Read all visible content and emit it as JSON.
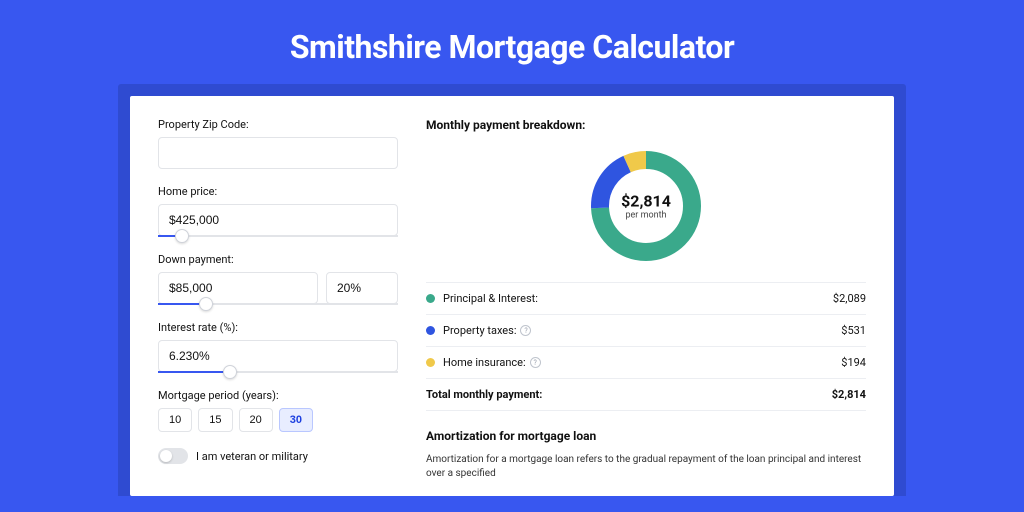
{
  "page": {
    "title": "Smithshire Mortgage Calculator",
    "colors": {
      "page_bg": "#3857f0",
      "card_wrap_bg": "#2f4bd1",
      "card_bg": "#ffffff",
      "accent": "#3857f0",
      "border": "#e2e4e8",
      "text": "#111111"
    }
  },
  "form": {
    "zip": {
      "label": "Property Zip Code:",
      "value": ""
    },
    "home_price": {
      "label": "Home price:",
      "value": "$425,000",
      "slider_pct": 10
    },
    "down_payment": {
      "label": "Down payment:",
      "value": "$85,000",
      "percent": "20%",
      "slider_pct": 20
    },
    "interest_rate": {
      "label": "Interest rate (%):",
      "value": "6.230%",
      "slider_pct": 30
    },
    "period": {
      "label": "Mortgage period (years):",
      "options": [
        "10",
        "15",
        "20",
        "30"
      ],
      "selected": "30"
    },
    "veteran": {
      "label": "I am veteran or military",
      "checked": false
    }
  },
  "breakdown": {
    "title": "Monthly payment breakdown:",
    "donut": {
      "amount": "$2,814",
      "sub": "per month",
      "segments": [
        {
          "key": "principal_interest",
          "value": 2089,
          "pct": 74.2,
          "color": "#3aa98b"
        },
        {
          "key": "property_taxes",
          "value": 531,
          "pct": 18.9,
          "color": "#2f55e0"
        },
        {
          "key": "home_insurance",
          "value": 194,
          "pct": 6.9,
          "color": "#f0c94a"
        }
      ],
      "thickness_pct": 22
    },
    "rows": [
      {
        "label": "Principal & Interest:",
        "color": "#3aa98b",
        "value": "$2,089",
        "info": false
      },
      {
        "label": "Property taxes:",
        "color": "#2f55e0",
        "value": "$531",
        "info": true
      },
      {
        "label": "Home insurance:",
        "color": "#f0c94a",
        "value": "$194",
        "info": true
      }
    ],
    "total": {
      "label": "Total monthly payment:",
      "value": "$2,814"
    }
  },
  "amortization": {
    "title": "Amortization for mortgage loan",
    "text": "Amortization for a mortgage loan refers to the gradual repayment of the loan principal and interest over a specified"
  }
}
